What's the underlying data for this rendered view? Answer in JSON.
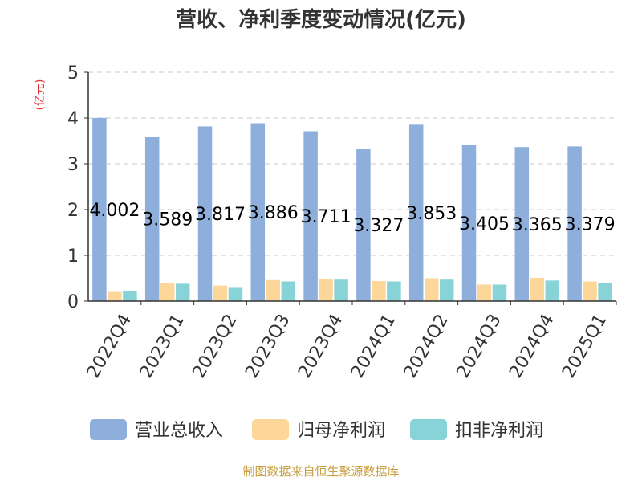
{
  "chart_data": {
    "type": "bar",
    "title": "营收、净利季度变动情况(亿元)",
    "unit_label": "(亿元)",
    "categories": [
      "2022Q4",
      "2023Q1",
      "2023Q2",
      "2023Q3",
      "2023Q4",
      "2024Q1",
      "2024Q2",
      "2024Q3",
      "2024Q4",
      "2025Q1"
    ],
    "series": [
      {
        "name": "营业总收入",
        "color": "#8eaedb",
        "values": [
          4.002,
          3.589,
          3.817,
          3.886,
          3.711,
          3.327,
          3.853,
          3.405,
          3.365,
          3.379
        ],
        "labels": [
          "4.002",
          "3.589",
          "3.817",
          "3.886",
          "3.711",
          "3.327",
          "3.853",
          "3.405",
          "3.365",
          "3.379"
        ]
      },
      {
        "name": "归母净利润",
        "color": "#fdd79a",
        "values": [
          0.2,
          0.39,
          0.34,
          0.46,
          0.48,
          0.44,
          0.5,
          0.36,
          0.51,
          0.43
        ]
      },
      {
        "name": "扣非净利润",
        "color": "#87d3d8",
        "values": [
          0.21,
          0.38,
          0.29,
          0.43,
          0.47,
          0.43,
          0.47,
          0.36,
          0.45,
          0.4
        ]
      }
    ],
    "y_ticks": [
      "0",
      "1",
      "2",
      "3",
      "4",
      "5"
    ],
    "ylim": [
      0,
      5
    ],
    "grid": true,
    "legend_position": "bottom"
  },
  "footer": {
    "source_text": "制图数据来自恒生聚源数据库"
  },
  "colors": {
    "axis": "#333333",
    "grid": "#c8c8c8",
    "unit": "#e8302b",
    "source": "#c8a040",
    "label": "#000000"
  }
}
